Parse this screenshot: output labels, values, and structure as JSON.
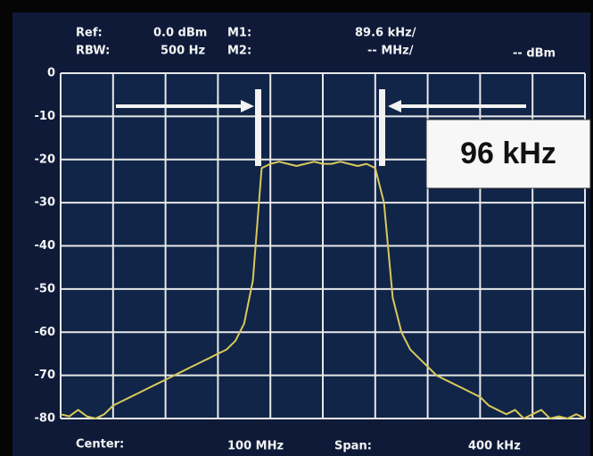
{
  "chart_data": {
    "type": "line",
    "annotations": [
      "Ref:",
      "0.0 dBm",
      "M1:",
      "89.6 kHz/",
      "RBW:",
      "500 Hz",
      "M2:",
      "-- MHz/",
      "-- dBm",
      "Center:",
      "100 MHz",
      "Span:",
      "400 kHz",
      "96 kHz"
    ],
    "values": [
      -79,
      -79.5,
      -78,
      -79.5,
      -80,
      -79,
      -77,
      -76,
      -75,
      -74,
      -73,
      -72,
      -71,
      -70,
      -69,
      -68,
      -67,
      -66,
      -65,
      -64,
      -62,
      -58,
      -48,
      -22,
      -21,
      -20.5,
      -21,
      -21.5,
      -21,
      -20.5,
      -21,
      -21,
      -20.5,
      -21,
      -21.5,
      -21,
      -22,
      -30,
      -52,
      -60,
      -64,
      -66,
      -68,
      -70,
      -71,
      -72,
      -73,
      -74,
      -75,
      -77,
      -78,
      -79,
      -78,
      -80,
      -79,
      -78,
      -80,
      -79.5,
      -80,
      -79,
      -80
    ],
    "color": "#d9c85c",
    "ylim": [
      -80,
      0
    ],
    "yticks": [
      0,
      -10,
      -20,
      -30,
      -40,
      -50,
      -60,
      -70,
      -80
    ],
    "grid": true
  }
}
